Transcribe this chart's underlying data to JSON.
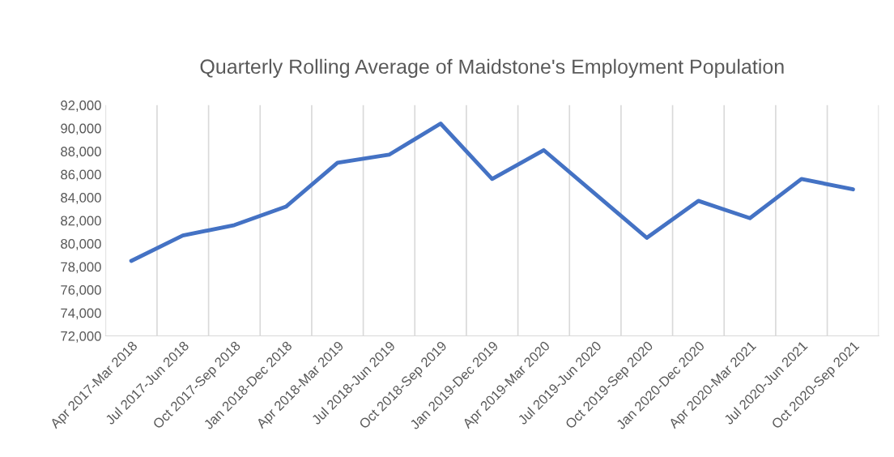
{
  "chart_data": {
    "type": "line",
    "title": "Quarterly Rolling Average of Maidstone's Employment Population",
    "categories": [
      "Apr 2017-Mar 2018",
      "Jul 2017-Jun 2018",
      "Oct 2017-Sep 2018",
      "Jan 2018-Dec 2018",
      "Apr 2018-Mar 2019",
      "Jul 2018-Jun 2019",
      "Oct 2018-Sep 2019",
      "Jan 2019-Dec 2019",
      "Apr 2019-Mar 2020",
      "Jul 2019-Jun 2020",
      "Oct 2019-Sep 2020",
      "Jan 2020-Dec 2020",
      "Apr 2020-Mar 2021",
      "Jul 2020-Jun 2021",
      "Oct 2020-Sep 2021"
    ],
    "series": [
      {
        "color": "#4472c4",
        "values": [
          78500,
          80700,
          81600,
          83200,
          87000,
          87700,
          90400,
          85600,
          88100,
          84300,
          80500,
          83700,
          82200,
          85600,
          84700
        ]
      }
    ],
    "ylim": [
      72000,
      92000
    ],
    "yticks": [
      {
        "value": 72000,
        "label": "72,000"
      },
      {
        "value": 74000,
        "label": "74,000"
      },
      {
        "value": 76000,
        "label": "76,000"
      },
      {
        "value": 78000,
        "label": "78,000"
      },
      {
        "value": 80000,
        "label": "80,000"
      },
      {
        "value": 82000,
        "label": "82,000"
      },
      {
        "value": 84000,
        "label": "84,000"
      },
      {
        "value": 86000,
        "label": "86,000"
      },
      {
        "value": 88000,
        "label": "88,000"
      },
      {
        "value": 90000,
        "label": "90,000"
      },
      {
        "value": 92000,
        "label": "92,000"
      }
    ],
    "grid": "x",
    "legend": false,
    "marker": "none",
    "line_style": "solid"
  }
}
